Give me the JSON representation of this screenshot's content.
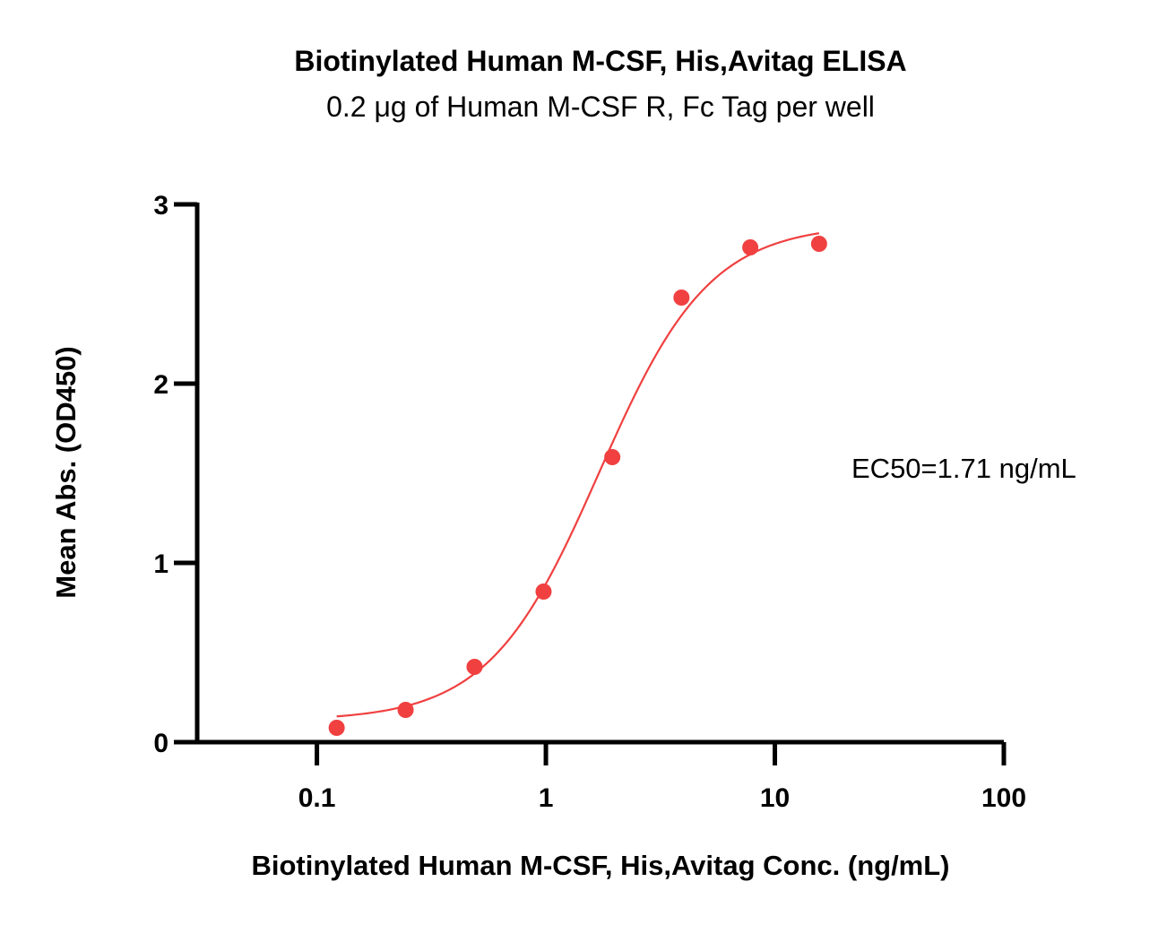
{
  "chart_data": {
    "type": "scatter",
    "title": "Biotinylated Human M-CSF, His,Avitag ELISA",
    "subtitle": "0.2 μg of Human M-CSF R, Fc Tag per well",
    "xlabel": "Biotinylated Human M-CSF, His,Avitag Conc. (ng/mL)",
    "ylabel": "Mean Abs. (OD450)",
    "xscale": "log",
    "xlim": [
      0.03,
      100
    ],
    "ylim": [
      0,
      3
    ],
    "xticks": [
      0.1,
      1,
      10,
      100
    ],
    "xtick_labels": [
      "0.1",
      "1",
      "10",
      "100"
    ],
    "yticks": [
      0,
      1,
      2,
      3
    ],
    "ytick_labels": [
      "0",
      "1",
      "2",
      "3"
    ],
    "grid": false,
    "series": [
      {
        "color": "#f04040",
        "x": [
          0.122,
          0.244,
          0.488,
          0.977,
          1.95,
          3.91,
          7.81,
          15.6
        ],
        "y": [
          0.08,
          0.18,
          0.42,
          0.84,
          1.59,
          2.48,
          2.76,
          2.78
        ]
      }
    ],
    "fit": {
      "type": "4PL",
      "color": "#f04040",
      "bottom": 0.12,
      "top": 2.89,
      "ec50": 1.71,
      "hill": 1.8,
      "x_range": [
        0.122,
        15.6
      ]
    },
    "annotations": [
      "EC50=1.71 ng/mL"
    ]
  }
}
